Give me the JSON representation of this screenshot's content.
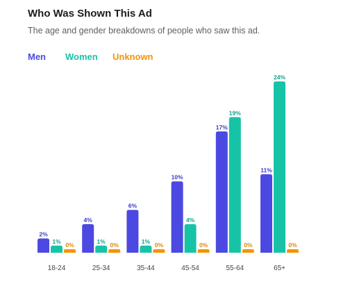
{
  "chart_data": {
    "type": "bar",
    "title": "Who Was Shown This Ad",
    "subtitle": "The age and gender breakdowns of people who saw this ad.",
    "categories": [
      "18-24",
      "25-34",
      "35-44",
      "45-54",
      "55-64",
      "65+"
    ],
    "series": [
      {
        "name": "Men",
        "color": "#4b49e1",
        "values": [
          2,
          4,
          6,
          10,
          17,
          11
        ],
        "labels": [
          "2%",
          "4%",
          "6%",
          "10%",
          "17%",
          "11%"
        ]
      },
      {
        "name": "Women",
        "color": "#17c3a6",
        "values": [
          1,
          1,
          1,
          4,
          19,
          24
        ],
        "labels": [
          "1%",
          "1%",
          "1%",
          "4%",
          "19%",
          "24%"
        ]
      },
      {
        "name": "Unknown",
        "color": "#f59300",
        "values": [
          0,
          0,
          0,
          0,
          0,
          0
        ],
        "labels": [
          "0%",
          "0%",
          "0%",
          "0%",
          "0%",
          "0%"
        ]
      }
    ],
    "ylim": [
      0,
      24
    ],
    "legend_position": "top-left",
    "grid": false,
    "xlabel": "",
    "ylabel": ""
  }
}
